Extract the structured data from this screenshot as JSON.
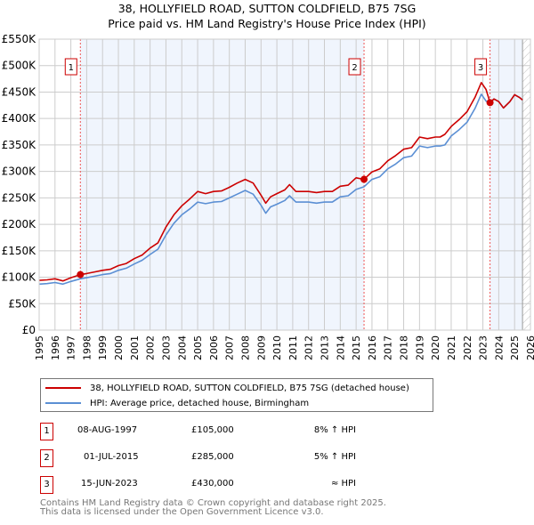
{
  "title": "38, HOLLYFIELD ROAD, SUTTON COLDFIELD, B75 7SG",
  "subtitle": "Price paid vs. HM Land Registry's House Price Index (HPI)",
  "chart_data": {
    "type": "line",
    "title": "38, HOLLYFIELD ROAD, SUTTON COLDFIELD, B75 7SG",
    "subtitle": "Price paid vs. HM Land Registry's House Price Index (HPI)",
    "xlim": [
      1995,
      2026
    ],
    "ylim": [
      0,
      550000
    ],
    "x_ticks": [
      "1995",
      "1996",
      "1997",
      "1998",
      "1999",
      "2000",
      "2001",
      "2002",
      "2003",
      "2004",
      "2005",
      "2006",
      "2007",
      "2008",
      "2009",
      "2010",
      "2011",
      "2012",
      "2013",
      "2014",
      "2015",
      "2016",
      "2017",
      "2018",
      "2019",
      "2020",
      "2021",
      "2022",
      "2023",
      "2024",
      "2025",
      "2026"
    ],
    "y_ticks": [
      0,
      50000,
      100000,
      150000,
      200000,
      250000,
      300000,
      350000,
      400000,
      450000,
      500000,
      550000
    ],
    "y_tick_labels": [
      "£0",
      "£50K",
      "£100K",
      "£150K",
      "£200K",
      "£250K",
      "£300K",
      "£350K",
      "£400K",
      "£450K",
      "£500K",
      "£550K"
    ],
    "grid": true,
    "legend_position": "bottom",
    "series": [
      {
        "name": "38, HOLLYFIELD ROAD, SUTTON COLDFIELD, B75 7SG (detached house)",
        "color": "#cc0000",
        "x": [
          1995,
          1995.5,
          1996,
          1996.5,
          1997,
          1997.6,
          1998,
          1998.5,
          1999,
          1999.5,
          2000,
          2000.5,
          2001,
          2001.5,
          2002,
          2002.5,
          2003,
          2003.5,
          2004,
          2004.5,
          2005,
          2005.5,
          2006,
          2006.5,
          2007,
          2007.5,
          2008,
          2008.5,
          2009,
          2009.3,
          2009.6,
          2010,
          2010.5,
          2010.8,
          2011.2,
          2011.6,
          2012,
          2012.5,
          2013,
          2013.5,
          2014,
          2014.5,
          2015,
          2015.5,
          2016,
          2016.5,
          2017,
          2017.5,
          2018,
          2018.5,
          2019,
          2019.5,
          2020,
          2020.3,
          2020.6,
          2021,
          2021.5,
          2022,
          2022.5,
          2022.9,
          2023.2,
          2023.45,
          2023.7,
          2024,
          2024.3,
          2024.7,
          2025,
          2025.3,
          2025.5
        ],
        "y": [
          94000,
          95000,
          97000,
          93000,
          99000,
          105000,
          107000,
          110000,
          113000,
          115000,
          122000,
          126000,
          135000,
          142000,
          155000,
          165000,
          195000,
          218000,
          235000,
          248000,
          262000,
          258000,
          262000,
          263000,
          270000,
          278000,
          285000,
          278000,
          255000,
          240000,
          252000,
          258000,
          265000,
          275000,
          262000,
          262000,
          262000,
          260000,
          262000,
          262000,
          272000,
          274000,
          288000,
          285000,
          299000,
          305000,
          320000,
          330000,
          342000,
          345000,
          365000,
          362000,
          365000,
          365000,
          370000,
          385000,
          398000,
          413000,
          440000,
          468000,
          455000,
          430000,
          437000,
          432000,
          420000,
          432000,
          445000,
          440000,
          435000
        ]
      },
      {
        "name": "HPI: Average price, detached house, Birmingham",
        "color": "#5b8fd4",
        "x": [
          1995,
          1995.5,
          1996,
          1996.5,
          1997,
          1997.6,
          1998,
          1998.5,
          1999,
          1999.5,
          2000,
          2000.5,
          2001,
          2001.5,
          2002,
          2002.5,
          2003,
          2003.5,
          2004,
          2004.5,
          2005,
          2005.5,
          2006,
          2006.5,
          2007,
          2007.5,
          2008,
          2008.5,
          2009,
          2009.3,
          2009.6,
          2010,
          2010.5,
          2010.8,
          2011.2,
          2011.6,
          2012,
          2012.5,
          2013,
          2013.5,
          2014,
          2014.5,
          2015,
          2015.5,
          2016,
          2016.5,
          2017,
          2017.5,
          2018,
          2018.5,
          2019,
          2019.5,
          2020,
          2020.3,
          2020.6,
          2021,
          2021.5,
          2022,
          2022.5,
          2022.9,
          2023.2,
          2023.45,
          2023.7,
          2024,
          2024.3,
          2024.7,
          2025,
          2025.3,
          2025.5
        ],
        "y": [
          87000,
          88000,
          90000,
          87000,
          92000,
          97000,
          99000,
          102000,
          105000,
          107000,
          113000,
          117000,
          125000,
          132000,
          143000,
          153000,
          180000,
          202000,
          218000,
          229000,
          242000,
          239000,
          242000,
          243000,
          250000,
          257000,
          264000,
          257000,
          236000,
          221000,
          233000,
          238000,
          245000,
          254000,
          242000,
          242000,
          242000,
          240000,
          242000,
          242000,
          252000,
          254000,
          266000,
          271000,
          285000,
          290000,
          305000,
          314000,
          326000,
          329000,
          348000,
          345000,
          348000,
          348000,
          350000,
          367000,
          379000,
          393000,
          419000,
          446000,
          433000,
          430000,
          437000,
          432000,
          420000,
          432000,
          445000,
          440000,
          435000
        ]
      }
    ],
    "sales": [
      {
        "label": "1",
        "x": 1997.6,
        "y": 105000
      },
      {
        "label": "2",
        "x": 2015.5,
        "y": 285000
      },
      {
        "label": "3",
        "x": 2023.45,
        "y": 430000
      }
    ],
    "data_end_x": 2025.5
  },
  "legend": {
    "property": "38, HOLLYFIELD ROAD, SUTTON COLDFIELD, B75 7SG (detached house)",
    "hpi": "HPI: Average price, detached house, Birmingham",
    "property_color": "#cc0000",
    "hpi_color": "#5b8fd4"
  },
  "transactions": [
    {
      "num": "1",
      "date": "08-AUG-1997",
      "price": "£105,000",
      "hpi": "8% ↑ HPI"
    },
    {
      "num": "2",
      "date": "01-JUL-2015",
      "price": "£285,000",
      "hpi": "5% ↑ HPI"
    },
    {
      "num": "3",
      "date": "15-JUN-2023",
      "price": "£430,000",
      "hpi": "≈ HPI"
    }
  ],
  "footer": {
    "line1": "Contains HM Land Registry data © Crown copyright and database right 2025.",
    "line2": "This data is licensed under the Open Government Licence v3.0."
  }
}
